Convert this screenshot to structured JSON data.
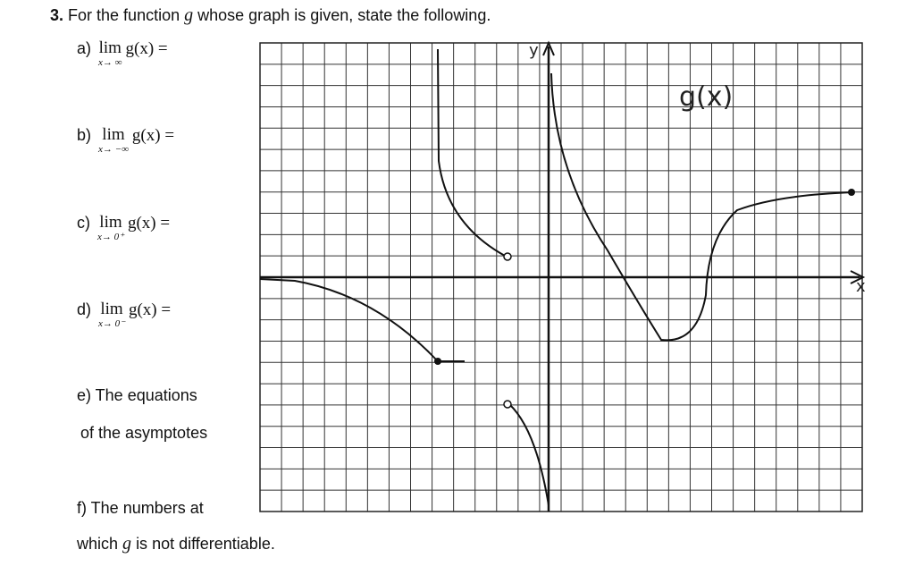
{
  "question": {
    "number": "3.",
    "prompt_before": "For the function",
    "variable": "g",
    "prompt_after": "whose graph is given, state the following."
  },
  "items": [
    {
      "label": "a)",
      "lim": "lim",
      "sub": "x→ ∞",
      "expr": "g(x) ="
    },
    {
      "label": "b)",
      "lim": "lim",
      "sub": "x→ −∞",
      "expr": "g(x) ="
    },
    {
      "label": "c)",
      "lim": "lim",
      "sub": "x→ 0⁺",
      "expr": "g(x) ="
    },
    {
      "label": "d)",
      "lim": "lim",
      "sub": "x→ 0⁻",
      "expr": "g(x) ="
    }
  ],
  "item_e": {
    "line1": "e) The equations",
    "line2": "of the asymptotes"
  },
  "item_f": {
    "line1": "f) The numbers at",
    "line2_before": "which",
    "variable": "g",
    "line2_after": "is not differentiable."
  },
  "graph": {
    "curve_label": "g(x)",
    "y_axis": "y",
    "x_axis": "x"
  }
}
